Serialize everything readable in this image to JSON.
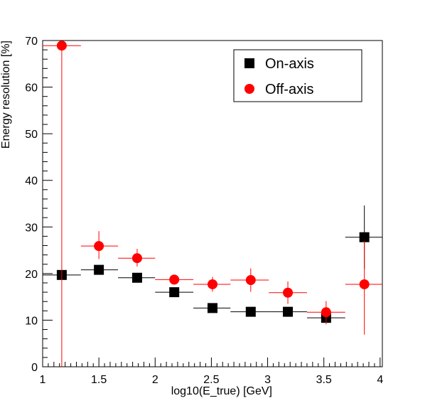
{
  "chart_data": {
    "type": "scatter",
    "title": "",
    "xlabel": "log10(E_true) [GeV]",
    "ylabel": "Energy resolution [%]",
    "xlim": [
      1,
      4.02
    ],
    "ylim": [
      0,
      70
    ],
    "x_ticks": [
      1,
      1.5,
      2,
      2.5,
      3,
      3.5,
      4
    ],
    "x_tick_labels": [
      "1",
      "1.5",
      "2",
      "2.5",
      "3",
      "3.5",
      "4"
    ],
    "y_ticks": [
      0,
      10,
      20,
      30,
      40,
      50,
      60,
      70
    ],
    "y_tick_labels": [
      "0",
      "10",
      "20",
      "30",
      "40",
      "50",
      "60",
      "70"
    ],
    "grid": false,
    "legend_position": "top-right",
    "series": [
      {
        "name": "On-axis",
        "color": "#000000",
        "marker": "square",
        "points": [
          {
            "x": 1.17,
            "y": 19.7,
            "xlo": 1.0,
            "xhi": 1.34,
            "yerr": 0.6
          },
          {
            "x": 1.5,
            "y": 20.8,
            "xlo": 1.34,
            "xhi": 1.67,
            "yerr": 0.6
          },
          {
            "x": 1.84,
            "y": 19.1,
            "xlo": 1.67,
            "xhi": 2.0,
            "yerr": 0.6
          },
          {
            "x": 2.17,
            "y": 16.0,
            "xlo": 2.0,
            "xhi": 2.34,
            "yerr": 0.6
          },
          {
            "x": 2.51,
            "y": 12.6,
            "xlo": 2.34,
            "xhi": 2.67,
            "yerr": 0.6
          },
          {
            "x": 2.85,
            "y": 11.8,
            "xlo": 2.67,
            "xhi": 3.01,
            "yerr": 0.6
          },
          {
            "x": 3.18,
            "y": 11.8,
            "xlo": 3.01,
            "xhi": 3.35,
            "yerr": 0.6
          },
          {
            "x": 3.52,
            "y": 10.5,
            "xlo": 3.35,
            "xhi": 3.69,
            "yerr": 0.8
          },
          {
            "x": 3.86,
            "y": 27.8,
            "xlo": 3.69,
            "xhi": 4.02,
            "yerr": 6.8
          }
        ]
      },
      {
        "name": "Off-axis",
        "color": "#ff0000",
        "marker": "circle",
        "points": [
          {
            "x": 1.17,
            "y": 68.9,
            "xlo": 1.0,
            "xhi": 1.34,
            "yerr_lo": 68.9,
            "yerr_hi": 0.5
          },
          {
            "x": 1.5,
            "y": 25.9,
            "xlo": 1.34,
            "xhi": 1.67,
            "yerr_lo": 2.8,
            "yerr_hi": 3.2
          },
          {
            "x": 1.84,
            "y": 23.3,
            "xlo": 1.67,
            "xhi": 2.0,
            "yerr_lo": 1.8,
            "yerr_hi": 2.0
          },
          {
            "x": 2.17,
            "y": 18.7,
            "xlo": 2.0,
            "xhi": 2.34,
            "yerr_lo": 1.0,
            "yerr_hi": 1.0
          },
          {
            "x": 2.51,
            "y": 17.7,
            "xlo": 2.34,
            "xhi": 2.67,
            "yerr_lo": 1.6,
            "yerr_hi": 1.6
          },
          {
            "x": 2.85,
            "y": 18.6,
            "xlo": 2.67,
            "xhi": 3.01,
            "yerr_lo": 2.5,
            "yerr_hi": 2.5
          },
          {
            "x": 3.18,
            "y": 15.9,
            "xlo": 3.01,
            "xhi": 3.35,
            "yerr_lo": 2.4,
            "yerr_hi": 2.4
          },
          {
            "x": 3.52,
            "y": 11.7,
            "xlo": 3.35,
            "xhi": 3.69,
            "yerr_lo": 2.6,
            "yerr_hi": 2.4
          },
          {
            "x": 3.86,
            "y": 17.7,
            "xlo": 3.69,
            "xhi": 4.02,
            "yerr_lo": 10.8,
            "yerr_hi": 9.3
          }
        ]
      }
    ]
  }
}
